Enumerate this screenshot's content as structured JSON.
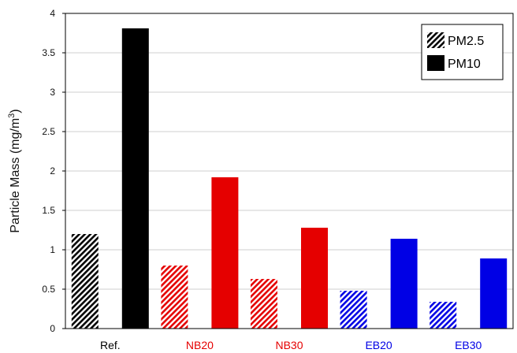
{
  "chart_data": {
    "type": "bar",
    "categories": [
      "Ref.",
      "NB20",
      "NB30",
      "EB20",
      "EB30"
    ],
    "category_colors": [
      "#000000",
      "#e50000",
      "#e50000",
      "#0000e5",
      "#0000e5"
    ],
    "series": [
      {
        "name": "PM2.5",
        "pattern": "hatched",
        "values": [
          1.2,
          0.8,
          0.63,
          0.48,
          0.34
        ]
      },
      {
        "name": "PM10",
        "pattern": "solid",
        "values": [
          3.81,
          1.92,
          1.28,
          1.14,
          0.89
        ]
      }
    ],
    "ylabel_main": "Particle Mass (mg/m",
    "ylabel_sup": "3",
    "ylabel_tail": ")",
    "ylim": [
      0,
      4
    ],
    "yticks": [
      "0",
      "0.5",
      "1",
      "1.5",
      "2",
      "2.5",
      "3",
      "3.5",
      "4"
    ],
    "grid": true,
    "legend_position": "top-right"
  }
}
